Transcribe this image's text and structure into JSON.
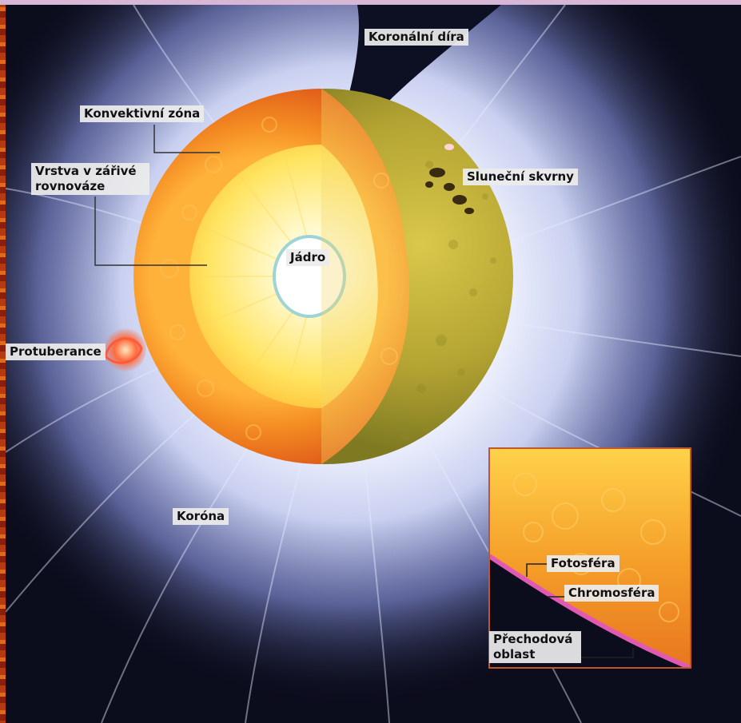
{
  "diagram": {
    "labels": {
      "coronal_hole": "Koronální díra",
      "convective_zone": "Konvektivní zóna",
      "radiative_zone_line1": "Vrstva v zářivé",
      "radiative_zone_line2": "rovnováze",
      "sunspots": "Sluneční skvrny",
      "core": "Jádro",
      "prominence": "Protuberance",
      "corona": "Koróna",
      "photosphere": "Fotosféra",
      "chromosphere": "Chromosféra",
      "transition_region_line1": "Přechodová",
      "transition_region_line2": "oblast"
    },
    "colors": {
      "space": "#0b0c1c",
      "corona_glow": "#e8ecff",
      "convective_orange": "#f07a1c",
      "radiative_yellow": "#ffe97a",
      "surface_olive": "#b9a832",
      "core_ring": "#9fd4d6",
      "chromosphere_pink": "#e05ab4"
    }
  }
}
